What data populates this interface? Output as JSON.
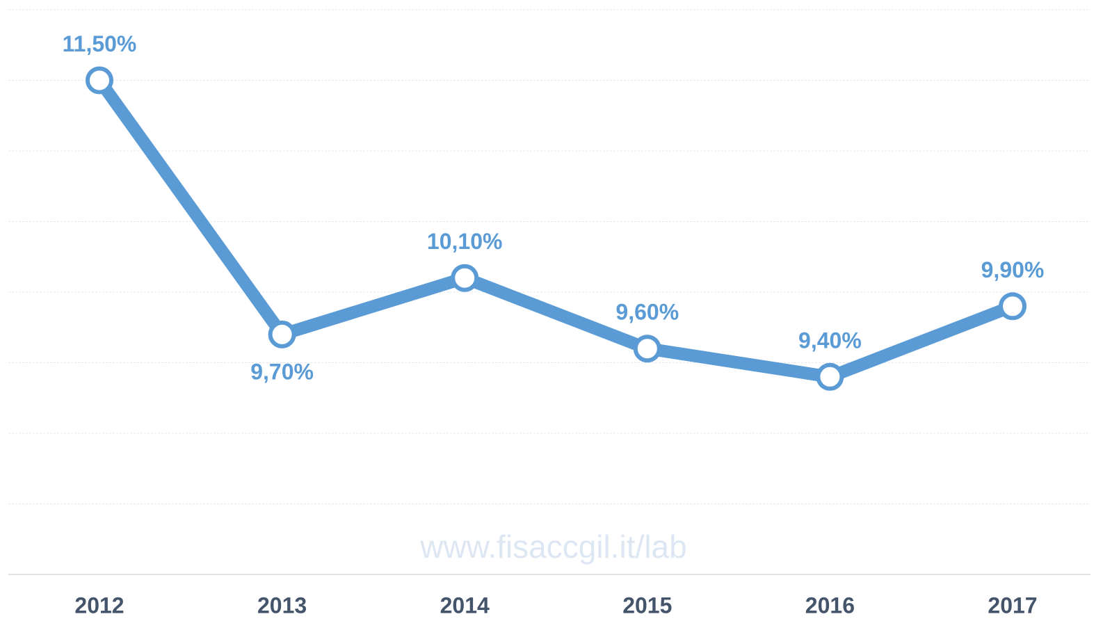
{
  "chart_data": {
    "type": "line",
    "categories": [
      "2012",
      "2013",
      "2014",
      "2015",
      "2016",
      "2017"
    ],
    "series": [
      {
        "color": "#5b9bd5",
        "values": [
          11.5,
          9.7,
          10.1,
          9.6,
          9.4,
          9.9
        ],
        "value_labels": [
          "11,50%",
          "9,70%",
          "10,10%",
          "9,60%",
          "9,40%",
          "9,90%"
        ]
      }
    ],
    "ylim": [
      8,
      12
    ],
    "yticks": [
      8,
      8.5,
      9,
      9.5,
      10,
      10.5,
      11,
      11.5,
      12
    ],
    "grid": true,
    "annotation": "www.fisaccgil.it/lab"
  }
}
